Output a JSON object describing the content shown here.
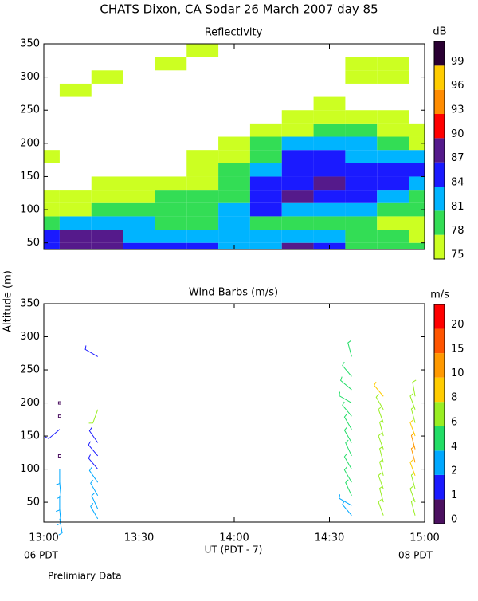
{
  "title": "CHATS Dixon, CA  Sodar  26 March 2007  day  85",
  "y_axis_label": "Altitude (m)",
  "x_axis_label": "UT  (PDT - 7)",
  "x_start_label": "06 PDT",
  "x_end_label": "08 PDT",
  "footnote": "Prelimiary Data",
  "chart_data": [
    {
      "type": "contour",
      "title": "Reflectivity",
      "unit_label": "dB",
      "x": [
        "13:00",
        "13:10",
        "13:20",
        "13:30",
        "13:40",
        "13:50",
        "14:00",
        "14:10",
        "14:20",
        "14:30",
        "14:40",
        "14:50",
        "15:00"
      ],
      "y": [
        40,
        60,
        80,
        100,
        120,
        140,
        160,
        180,
        200,
        220,
        240,
        260,
        280,
        300,
        320,
        340
      ],
      "z": [
        [
          84,
          87,
          87,
          84,
          84,
          84,
          82,
          83,
          87,
          84,
          79,
          79,
          79
        ],
        [
          85,
          87,
          87,
          83,
          82,
          81,
          81,
          82,
          82,
          81,
          79,
          78,
          76
        ],
        [
          80,
          81,
          82,
          81,
          80,
          80,
          81,
          80,
          79,
          80,
          79,
          77,
          76
        ],
        [
          77,
          77,
          78,
          79,
          79,
          80,
          81,
          84,
          82,
          81,
          81,
          80,
          79
        ],
        [
          75,
          76,
          76,
          77,
          78,
          79,
          80,
          85,
          87,
          84,
          84,
          82,
          80
        ],
        [
          null,
          null,
          75,
          75,
          76,
          77,
          79,
          84,
          86,
          88,
          85,
          84,
          82
        ],
        [
          null,
          null,
          null,
          null,
          null,
          76,
          78,
          82,
          85,
          86,
          85,
          84,
          86
        ],
        [
          76,
          null,
          null,
          null,
          null,
          75,
          77,
          80,
          84,
          85,
          83,
          82,
          82
        ],
        [
          null,
          null,
          null,
          null,
          null,
          null,
          76,
          79,
          81,
          81,
          81,
          79,
          77
        ],
        [
          null,
          null,
          null,
          null,
          null,
          null,
          null,
          77,
          77,
          78,
          78,
          77,
          76
        ],
        [
          null,
          null,
          null,
          null,
          null,
          null,
          null,
          null,
          76,
          76,
          76,
          75,
          null
        ],
        [
          null,
          null,
          null,
          null,
          null,
          null,
          null,
          null,
          null,
          75,
          null,
          null,
          null
        ],
        [
          null,
          75,
          null,
          null,
          null,
          null,
          null,
          null,
          null,
          null,
          null,
          null,
          null
        ],
        [
          null,
          null,
          75,
          null,
          null,
          null,
          null,
          null,
          null,
          null,
          75,
          75,
          null
        ],
        [
          null,
          null,
          null,
          null,
          75,
          null,
          null,
          null,
          null,
          null,
          75,
          75,
          null
        ],
        [
          null,
          null,
          null,
          null,
          null,
          75,
          null,
          null,
          null,
          null,
          null,
          null,
          null
        ]
      ],
      "levels": [
        75,
        78,
        81,
        84,
        87,
        90,
        93,
        96,
        99
      ],
      "colors": [
        "#ccff22",
        "#33dd55",
        "#00b4ff",
        "#1a1aff",
        "#551a8b",
        "#ff0000",
        "#ff8c00",
        "#ffcc00",
        "#2a0033"
      ],
      "xlim": [
        "13:00",
        "15:00"
      ],
      "ylim": [
        40,
        350
      ],
      "yticks": [
        50,
        100,
        150,
        200,
        250,
        300,
        350
      ]
    },
    {
      "type": "barbs",
      "title": "Wind Barbs (m/s)",
      "unit_label": "m/s",
      "x": [
        "13:05",
        "13:05",
        "13:05",
        "13:05",
        "13:05",
        "13:05",
        "13:05",
        "13:05",
        "13:05",
        "13:17",
        "13:17",
        "13:17",
        "13:17",
        "13:17",
        "13:17",
        "13:17",
        "13:17",
        "13:17",
        "14:37",
        "14:37",
        "14:37",
        "14:37",
        "14:37",
        "14:37",
        "14:37",
        "14:37",
        "14:37",
        "14:37",
        "14:37",
        "14:37",
        "14:37",
        "14:47",
        "14:47",
        "14:47",
        "14:47",
        "14:47",
        "14:47",
        "14:47",
        "14:47",
        "14:47",
        "14:47",
        "14:57",
        "14:57",
        "14:57",
        "14:57",
        "14:57",
        "14:57",
        "14:57",
        "14:57",
        "14:57",
        "14:57"
      ],
      "y": [
        25,
        40,
        60,
        80,
        100,
        120,
        160,
        180,
        200,
        25,
        40,
        60,
        80,
        100,
        120,
        140,
        190,
        270,
        30,
        45,
        60,
        80,
        100,
        120,
        140,
        160,
        180,
        200,
        220,
        240,
        270,
        30,
        50,
        70,
        90,
        110,
        130,
        150,
        170,
        190,
        210,
        30,
        50,
        70,
        90,
        110,
        130,
        150,
        170,
        190,
        210
      ],
      "speed": [
        2,
        2,
        2,
        2,
        2,
        0,
        1,
        0,
        0,
        2,
        2,
        2,
        2,
        1,
        1,
        1,
        6,
        1,
        2,
        2,
        4,
        4,
        4,
        4,
        4,
        4,
        4,
        4,
        4,
        4,
        4,
        6,
        6,
        6,
        6,
        6,
        6,
        6,
        6,
        6,
        8,
        6,
        6,
        6,
        8,
        10,
        10,
        8,
        6,
        6,
        6
      ],
      "direction": [
        170,
        175,
        180,
        175,
        180,
        0,
        230,
        0,
        0,
        330,
        335,
        330,
        325,
        320,
        320,
        325,
        200,
        300,
        320,
        300,
        335,
        330,
        330,
        335,
        330,
        330,
        320,
        300,
        310,
        320,
        345,
        340,
        345,
        340,
        345,
        345,
        340,
        345,
        340,
        330,
        320,
        345,
        340,
        345,
        340,
        345,
        345,
        340,
        345,
        340,
        350
      ],
      "levels": [
        0,
        1,
        2,
        4,
        6,
        8,
        10,
        15,
        20
      ],
      "colors": [
        "#4b1060",
        "#1a1aff",
        "#00a8ff",
        "#22dd66",
        "#99ee22",
        "#ffcc00",
        "#ff9900",
        "#ff5500",
        "#ff0000"
      ],
      "xlim": [
        "13:00",
        "15:00"
      ],
      "ylim": [
        20,
        350
      ],
      "yticks": [
        50,
        100,
        150,
        200,
        250,
        300,
        350
      ],
      "xticks": [
        "13:00",
        "13:30",
        "14:00",
        "14:30",
        "15:00"
      ]
    }
  ]
}
